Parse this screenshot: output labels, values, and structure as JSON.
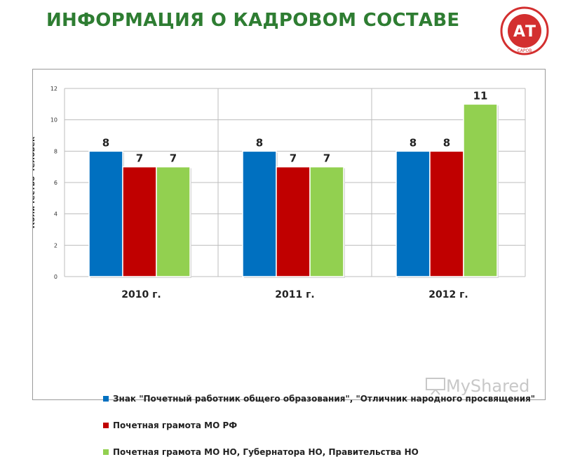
{
  "slide": {
    "title": "ИНФОРМАЦИЯ О КАДРОВОМ СОСТАВЕ"
  },
  "logo": {
    "text_center": "АТ",
    "text_bottom": "САРОВ",
    "colors": {
      "red": "#d32f2f",
      "white": "#ffffff"
    }
  },
  "watermark": {
    "text": "MyShared",
    "icon": "presentation-board-icon"
  },
  "chart_data": {
    "type": "bar",
    "ylabel": "Количество человек",
    "ylim": [
      0,
      12
    ],
    "yticks": [
      0,
      2,
      4,
      6,
      8,
      10,
      12
    ],
    "categories": [
      "2010 г.",
      "2011 г.",
      "2012 г."
    ],
    "series": [
      {
        "name": "Знак \"Почетный работник общего образования\", \"Отличник народного просвящения\"",
        "color": "#0070c0",
        "values": [
          8,
          8,
          8
        ]
      },
      {
        "name": "Почетная грамота МО РФ",
        "color": "#c00000",
        "values": [
          7,
          7,
          8
        ]
      },
      {
        "name": "Почетная грамота МО НО, Губернатора НО, Правительства НО",
        "color": "#92d050",
        "values": [
          7,
          7,
          11
        ]
      }
    ],
    "grid": true,
    "legend_position": "bottom",
    "data_labels": true
  }
}
